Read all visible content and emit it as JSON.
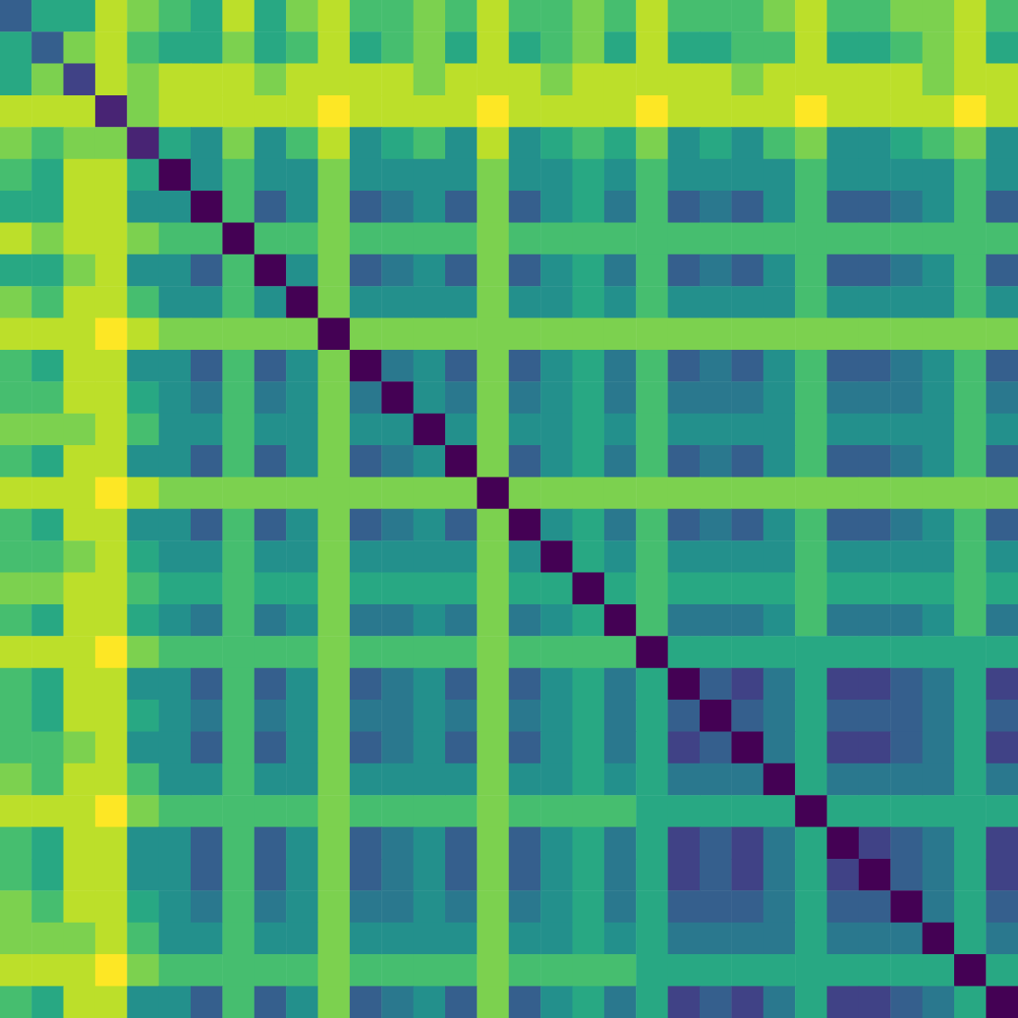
{
  "chart_data": {
    "type": "heatmap",
    "color": "viridis",
    "color_range": [
      0,
      1
    ],
    "tick_labels": false,
    "cells": [
      [
        0.3,
        0.6,
        0.6,
        0.9,
        0.8,
        0.7,
        0.6,
        0.9,
        0.6,
        0.8,
        0.9,
        0.7,
        0.7,
        0.8,
        0.7,
        0.9,
        0.7,
        0.7,
        0.8,
        0.7,
        0.9,
        0.7,
        0.7,
        0.7,
        0.8,
        0.9,
        0.7,
        0.7,
        0.8,
        0.8,
        0.9,
        0.7
      ],
      [
        0.6,
        0.3,
        0.8,
        0.9,
        0.7,
        0.6,
        0.6,
        0.8,
        0.6,
        0.7,
        0.9,
        0.6,
        0.7,
        0.8,
        0.6,
        0.9,
        0.6,
        0.7,
        0.8,
        0.6,
        0.9,
        0.6,
        0.6,
        0.7,
        0.7,
        0.9,
        0.6,
        0.6,
        0.7,
        0.8,
        0.9,
        0.6
      ],
      [
        0.6,
        0.8,
        0.2,
        0.9,
        0.8,
        0.9,
        0.9,
        0.9,
        0.8,
        0.9,
        0.9,
        0.9,
        0.9,
        0.8,
        0.9,
        0.9,
        0.9,
        0.8,
        0.9,
        0.9,
        0.9,
        0.9,
        0.9,
        0.8,
        0.9,
        0.9,
        0.9,
        0.9,
        0.9,
        0.8,
        0.9,
        0.9
      ],
      [
        0.9,
        0.9,
        0.9,
        0.1,
        0.8,
        0.9,
        0.9,
        0.9,
        0.9,
        0.9,
        1,
        0.9,
        0.9,
        0.9,
        0.9,
        1,
        0.9,
        0.9,
        0.9,
        0.9,
        1,
        0.9,
        0.9,
        0.9,
        0.9,
        1,
        0.9,
        0.9,
        0.9,
        0.9,
        1,
        0.9
      ],
      [
        0.8,
        0.7,
        0.8,
        0.8,
        0.1,
        0.6,
        0.5,
        0.8,
        0.5,
        0.7,
        0.9,
        0.5,
        0.6,
        0.7,
        0.5,
        0.9,
        0.5,
        0.6,
        0.7,
        0.6,
        0.8,
        0.5,
        0.6,
        0.5,
        0.7,
        0.8,
        0.5,
        0.5,
        0.6,
        0.7,
        0.8,
        0.5
      ],
      [
        0.7,
        0.6,
        0.9,
        0.9,
        0.6,
        0,
        0.5,
        0.7,
        0.5,
        0.5,
        0.8,
        0.5,
        0.5,
        0.5,
        0.5,
        0.8,
        0.5,
        0.5,
        0.6,
        0.5,
        0.7,
        0.5,
        0.5,
        0.5,
        0.5,
        0.7,
        0.5,
        0.5,
        0.5,
        0.5,
        0.7,
        0.5
      ],
      [
        0.6,
        0.6,
        0.9,
        0.9,
        0.5,
        0.5,
        0,
        0.7,
        0.3,
        0.5,
        0.8,
        0.3,
        0.4,
        0.5,
        0.3,
        0.8,
        0.3,
        0.5,
        0.6,
        0.4,
        0.7,
        0.3,
        0.4,
        0.3,
        0.5,
        0.7,
        0.3,
        0.3,
        0.4,
        0.5,
        0.7,
        0.3
      ],
      [
        0.9,
        0.8,
        0.9,
        0.9,
        0.8,
        0.7,
        0.7,
        0,
        0.7,
        0.7,
        0.8,
        0.7,
        0.7,
        0.7,
        0.7,
        0.8,
        0.7,
        0.7,
        0.7,
        0.7,
        0.7,
        0.7,
        0.7,
        0.7,
        0.7,
        0.7,
        0.7,
        0.7,
        0.7,
        0.7,
        0.7,
        0.7
      ],
      [
        0.6,
        0.6,
        0.8,
        0.9,
        0.5,
        0.5,
        0.3,
        0.7,
        0,
        0.5,
        0.8,
        0.3,
        0.4,
        0.5,
        0.3,
        0.8,
        0.3,
        0.5,
        0.6,
        0.4,
        0.7,
        0.3,
        0.4,
        0.3,
        0.5,
        0.7,
        0.3,
        0.3,
        0.4,
        0.5,
        0.7,
        0.3
      ],
      [
        0.8,
        0.7,
        0.9,
        0.9,
        0.7,
        0.5,
        0.5,
        0.7,
        0.5,
        0,
        0.8,
        0.5,
        0.5,
        0.5,
        0.5,
        0.8,
        0.5,
        0.5,
        0.6,
        0.5,
        0.7,
        0.5,
        0.5,
        0.5,
        0.5,
        0.7,
        0.5,
        0.5,
        0.5,
        0.5,
        0.7,
        0.5
      ],
      [
        0.9,
        0.9,
        0.9,
        1,
        0.9,
        0.8,
        0.8,
        0.8,
        0.8,
        0.8,
        0,
        0.8,
        0.8,
        0.8,
        0.8,
        0.8,
        0.8,
        0.8,
        0.8,
        0.8,
        0.8,
        0.8,
        0.8,
        0.8,
        0.8,
        0.8,
        0.8,
        0.8,
        0.8,
        0.8,
        0.8,
        0.8
      ],
      [
        0.7,
        0.6,
        0.9,
        0.9,
        0.5,
        0.5,
        0.3,
        0.7,
        0.3,
        0.5,
        0.8,
        0,
        0.4,
        0.5,
        0.3,
        0.8,
        0.3,
        0.5,
        0.6,
        0.4,
        0.7,
        0.3,
        0.4,
        0.3,
        0.5,
        0.7,
        0.3,
        0.3,
        0.4,
        0.5,
        0.7,
        0.3
      ],
      [
        0.7,
        0.7,
        0.9,
        0.9,
        0.6,
        0.5,
        0.4,
        0.7,
        0.4,
        0.5,
        0.8,
        0.4,
        0,
        0.5,
        0.4,
        0.8,
        0.4,
        0.5,
        0.6,
        0.4,
        0.7,
        0.4,
        0.4,
        0.4,
        0.5,
        0.7,
        0.4,
        0.4,
        0.4,
        0.5,
        0.7,
        0.4
      ],
      [
        0.8,
        0.8,
        0.8,
        0.9,
        0.7,
        0.5,
        0.5,
        0.7,
        0.5,
        0.5,
        0.8,
        0.5,
        0.5,
        0,
        0.5,
        0.8,
        0.5,
        0.5,
        0.6,
        0.5,
        0.7,
        0.5,
        0.5,
        0.5,
        0.5,
        0.7,
        0.5,
        0.5,
        0.5,
        0.5,
        0.7,
        0.5
      ],
      [
        0.7,
        0.6,
        0.9,
        0.9,
        0.5,
        0.5,
        0.3,
        0.7,
        0.3,
        0.5,
        0.8,
        0.3,
        0.4,
        0.5,
        0,
        0.8,
        0.3,
        0.5,
        0.6,
        0.4,
        0.7,
        0.3,
        0.4,
        0.3,
        0.5,
        0.7,
        0.3,
        0.3,
        0.4,
        0.5,
        0.7,
        0.3
      ],
      [
        0.9,
        0.9,
        0.9,
        1,
        0.9,
        0.8,
        0.8,
        0.8,
        0.8,
        0.8,
        0.8,
        0.8,
        0.8,
        0.8,
        0.8,
        0,
        0.8,
        0.8,
        0.8,
        0.8,
        0.8,
        0.8,
        0.8,
        0.8,
        0.8,
        0.8,
        0.8,
        0.8,
        0.8,
        0.8,
        0.8,
        0.8
      ],
      [
        0.7,
        0.6,
        0.9,
        0.9,
        0.5,
        0.5,
        0.3,
        0.7,
        0.3,
        0.5,
        0.8,
        0.3,
        0.4,
        0.5,
        0.3,
        0.8,
        0,
        0.5,
        0.6,
        0.4,
        0.7,
        0.3,
        0.4,
        0.3,
        0.5,
        0.7,
        0.3,
        0.3,
        0.4,
        0.5,
        0.7,
        0.3
      ],
      [
        0.7,
        0.7,
        0.8,
        0.9,
        0.6,
        0.5,
        0.5,
        0.7,
        0.5,
        0.5,
        0.8,
        0.5,
        0.5,
        0.5,
        0.5,
        0.8,
        0.5,
        0,
        0.6,
        0.5,
        0.7,
        0.5,
        0.5,
        0.5,
        0.5,
        0.7,
        0.5,
        0.5,
        0.5,
        0.5,
        0.7,
        0.5
      ],
      [
        0.8,
        0.8,
        0.9,
        0.9,
        0.7,
        0.6,
        0.6,
        0.7,
        0.6,
        0.6,
        0.8,
        0.6,
        0.6,
        0.6,
        0.6,
        0.8,
        0.6,
        0.6,
        0,
        0.6,
        0.7,
        0.6,
        0.6,
        0.6,
        0.6,
        0.7,
        0.6,
        0.6,
        0.6,
        0.6,
        0.7,
        0.6
      ],
      [
        0.7,
        0.6,
        0.9,
        0.9,
        0.6,
        0.5,
        0.4,
        0.7,
        0.4,
        0.5,
        0.8,
        0.4,
        0.4,
        0.5,
        0.4,
        0.8,
        0.4,
        0.5,
        0.6,
        0,
        0.7,
        0.4,
        0.4,
        0.4,
        0.5,
        0.7,
        0.4,
        0.4,
        0.4,
        0.5,
        0.7,
        0.4
      ],
      [
        0.9,
        0.9,
        0.9,
        1,
        0.8,
        0.7,
        0.7,
        0.7,
        0.7,
        0.7,
        0.8,
        0.7,
        0.7,
        0.7,
        0.7,
        0.8,
        0.7,
        0.7,
        0.7,
        0.7,
        0,
        0.6,
        0.6,
        0.6,
        0.6,
        0.6,
        0.6,
        0.6,
        0.6,
        0.6,
        0.6,
        0.6
      ],
      [
        0.7,
        0.6,
        0.9,
        0.9,
        0.5,
        0.5,
        0.3,
        0.7,
        0.3,
        0.5,
        0.8,
        0.3,
        0.4,
        0.5,
        0.3,
        0.8,
        0.3,
        0.5,
        0.6,
        0.4,
        0.6,
        0,
        0.3,
        0.2,
        0.4,
        0.6,
        0.2,
        0.2,
        0.3,
        0.4,
        0.6,
        0.2
      ],
      [
        0.7,
        0.6,
        0.9,
        0.9,
        0.6,
        0.5,
        0.4,
        0.7,
        0.4,
        0.5,
        0.8,
        0.4,
        0.4,
        0.5,
        0.4,
        0.8,
        0.4,
        0.5,
        0.6,
        0.4,
        0.6,
        0.3,
        0,
        0.3,
        0.4,
        0.6,
        0.3,
        0.3,
        0.3,
        0.4,
        0.6,
        0.3
      ],
      [
        0.7,
        0.7,
        0.8,
        0.9,
        0.5,
        0.5,
        0.3,
        0.7,
        0.3,
        0.5,
        0.8,
        0.3,
        0.4,
        0.5,
        0.3,
        0.8,
        0.3,
        0.5,
        0.6,
        0.4,
        0.6,
        0.2,
        0.3,
        0,
        0.4,
        0.6,
        0.2,
        0.2,
        0.3,
        0.4,
        0.6,
        0.2
      ],
      [
        0.8,
        0.7,
        0.9,
        0.9,
        0.7,
        0.5,
        0.5,
        0.7,
        0.5,
        0.5,
        0.8,
        0.5,
        0.5,
        0.5,
        0.5,
        0.8,
        0.5,
        0.5,
        0.6,
        0.5,
        0.6,
        0.4,
        0.4,
        0.4,
        0,
        0.6,
        0.4,
        0.4,
        0.4,
        0.4,
        0.6,
        0.4
      ],
      [
        0.9,
        0.9,
        0.9,
        1,
        0.8,
        0.7,
        0.7,
        0.7,
        0.7,
        0.7,
        0.8,
        0.7,
        0.7,
        0.7,
        0.7,
        0.8,
        0.7,
        0.7,
        0.7,
        0.7,
        0.6,
        0.6,
        0.6,
        0.6,
        0.6,
        0,
        0.6,
        0.6,
        0.6,
        0.6,
        0.6,
        0.6
      ],
      [
        0.7,
        0.6,
        0.9,
        0.9,
        0.5,
        0.5,
        0.3,
        0.7,
        0.3,
        0.5,
        0.8,
        0.3,
        0.4,
        0.5,
        0.3,
        0.8,
        0.3,
        0.5,
        0.6,
        0.4,
        0.6,
        0.2,
        0.3,
        0.2,
        0.4,
        0.6,
        0,
        0.2,
        0.3,
        0.4,
        0.6,
        0.2
      ],
      [
        0.7,
        0.6,
        0.9,
        0.9,
        0.5,
        0.5,
        0.3,
        0.7,
        0.3,
        0.5,
        0.8,
        0.3,
        0.4,
        0.5,
        0.3,
        0.8,
        0.3,
        0.5,
        0.6,
        0.4,
        0.6,
        0.2,
        0.3,
        0.2,
        0.4,
        0.6,
        0.2,
        0,
        0.3,
        0.4,
        0.6,
        0.2
      ],
      [
        0.8,
        0.7,
        0.9,
        0.9,
        0.6,
        0.5,
        0.4,
        0.7,
        0.4,
        0.5,
        0.8,
        0.4,
        0.4,
        0.5,
        0.4,
        0.8,
        0.4,
        0.5,
        0.6,
        0.4,
        0.6,
        0.3,
        0.3,
        0.3,
        0.4,
        0.6,
        0.3,
        0.3,
        0,
        0.4,
        0.6,
        0.3
      ],
      [
        0.8,
        0.8,
        0.8,
        0.9,
        0.7,
        0.5,
        0.5,
        0.7,
        0.5,
        0.5,
        0.8,
        0.5,
        0.5,
        0.5,
        0.5,
        0.8,
        0.5,
        0.5,
        0.6,
        0.5,
        0.6,
        0.4,
        0.4,
        0.4,
        0.4,
        0.6,
        0.4,
        0.4,
        0.4,
        0,
        0.6,
        0.4
      ],
      [
        0.9,
        0.9,
        0.9,
        1,
        0.8,
        0.7,
        0.7,
        0.7,
        0.7,
        0.7,
        0.8,
        0.7,
        0.7,
        0.7,
        0.7,
        0.8,
        0.7,
        0.7,
        0.7,
        0.7,
        0.6,
        0.6,
        0.6,
        0.6,
        0.6,
        0.6,
        0.6,
        0.6,
        0.6,
        0.6,
        0,
        0.6
      ],
      [
        0.7,
        0.6,
        0.9,
        0.9,
        0.5,
        0.5,
        0.3,
        0.7,
        0.3,
        0.5,
        0.8,
        0.3,
        0.4,
        0.5,
        0.3,
        0.8,
        0.3,
        0.5,
        0.6,
        0.4,
        0.6,
        0.2,
        0.3,
        0.2,
        0.4,
        0.6,
        0.2,
        0.2,
        0.3,
        0.4,
        0.6,
        0
      ]
    ]
  }
}
